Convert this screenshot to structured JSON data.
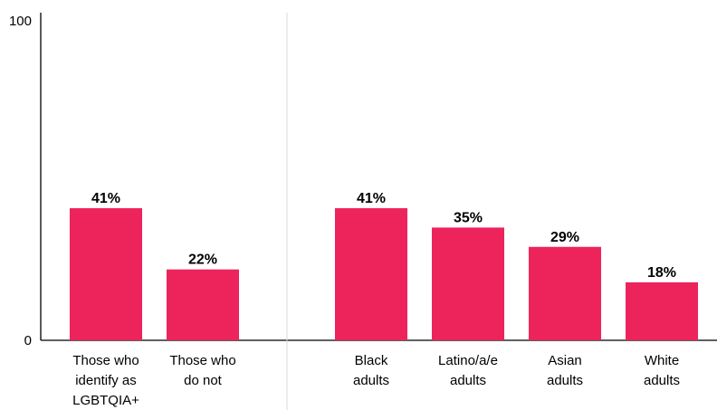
{
  "colors": {
    "bar": "#ED245B",
    "axis": "#000000",
    "separator": "#D9D9D9"
  },
  "chart_data": {
    "type": "bar",
    "title": "",
    "xlabel": "",
    "ylabel": "",
    "ylim": [
      0,
      100
    ],
    "y_ticks": [
      "0",
      "100"
    ],
    "grid": false,
    "legend": "none",
    "value_suffix": "%",
    "groups": [
      {
        "categories": [
          [
            "Those who",
            "identify as",
            "LGBTQIA+"
          ],
          [
            "Those who",
            "do not"
          ]
        ],
        "values": [
          41,
          22
        ]
      },
      {
        "categories": [
          [
            "Black",
            "adults"
          ],
          [
            "Latino/a/e",
            "adults"
          ],
          [
            "Asian",
            "adults"
          ],
          [
            "White",
            "adults"
          ]
        ],
        "values": [
          41,
          35,
          29,
          18
        ]
      }
    ]
  }
}
